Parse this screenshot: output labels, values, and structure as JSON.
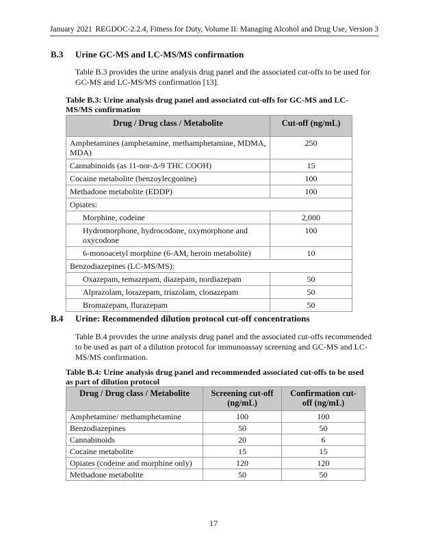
{
  "header": {
    "date": "January 2021",
    "title": "REGDOC-2.2.4, Fitness for Duty, Volume II: Managing Alcohol and Drug Use, Version 3"
  },
  "b3": {
    "number": "B.3",
    "title": "Urine GC-MS and LC-MS/MS confirmation",
    "text": "Table B.3 provides the urine analysis drug panel and the associated cut-offs to be used for GC-MS and LC-MS/MS confirmation [13].",
    "caption": "Table B.3: Urine analysis drug panel and associated cut-offs for GC-MS and LC-MS/MS confirmation",
    "columns": [
      "Drug / Drug class / Metabolite",
      "Cut-off (ng/mL)"
    ],
    "rows": [
      {
        "drug": "Amphetamines (amphetamine, methamphetamine, MDMA, MDA)",
        "cutoff": "250"
      },
      {
        "drug": "Cannabinoids (as 11-nor-Δ-9 THC COOH)",
        "cutoff": "15"
      },
      {
        "drug": "Cocaine metabolite (benzoylecgonine)",
        "cutoff": "100"
      },
      {
        "drug": "Methadone metabolite (EDDP)",
        "cutoff": "100"
      },
      {
        "drug": "Opiates:",
        "cutoff": ""
      },
      {
        "drug": "Morphine, codeine",
        "cutoff": "2,000"
      },
      {
        "drug": "Hydromorphone, hydrocodone, oxymorphone and oxycodone",
        "cutoff": "100"
      },
      {
        "drug": "6-monoacetyl morphine (6-AM, heroin metabolite)",
        "cutoff": "10"
      },
      {
        "drug": "Benzodiazepines (LC-MS/MS):",
        "cutoff": ""
      },
      {
        "drug": "Oxazepam, temazepam, diazepam, nordiazepam",
        "cutoff": "50"
      },
      {
        "drug": "Alprazolam, lorazepam, triazolam, clonazepam",
        "cutoff": "50"
      },
      {
        "drug": "Bromazepam, flurazepam",
        "cutoff": "50"
      }
    ]
  },
  "b4": {
    "number": "B.4",
    "title": "Urine: Recommended dilution protocol cut-off concentrations",
    "text": "Table B.4 provides the urine analysis drug panel and the associated cut-offs recommended to be used as part of a dilution protocol for immunoassay screening and GC-MS and LC-MS/MS confirmation.",
    "caption": "Table B.4: Urine analysis drug panel and recommended associated cut-offs to be used as part of dilution protocol",
    "columns": [
      "Drug / Drug class / Metabolite",
      "Screening cut-off (ng/mL)",
      "Confirmation cut-off (ng/mL)"
    ],
    "rows": [
      {
        "drug": "Amphetamine/ methamphetamine",
        "screening": "100",
        "confirmation": "100"
      },
      {
        "drug": "Benzodiazepines",
        "screening": "50",
        "confirmation": "50"
      },
      {
        "drug": "Cannabinoids",
        "screening": "20",
        "confirmation": "6"
      },
      {
        "drug": "Cocaine metabolite",
        "screening": "15",
        "confirmation": "15"
      },
      {
        "drug": "Opiates (codeine and morphine only)",
        "screening": "120",
        "confirmation": "120"
      },
      {
        "drug": "Methadone metabolite",
        "screening": "50",
        "confirmation": "50"
      }
    ]
  },
  "page_number": "17"
}
